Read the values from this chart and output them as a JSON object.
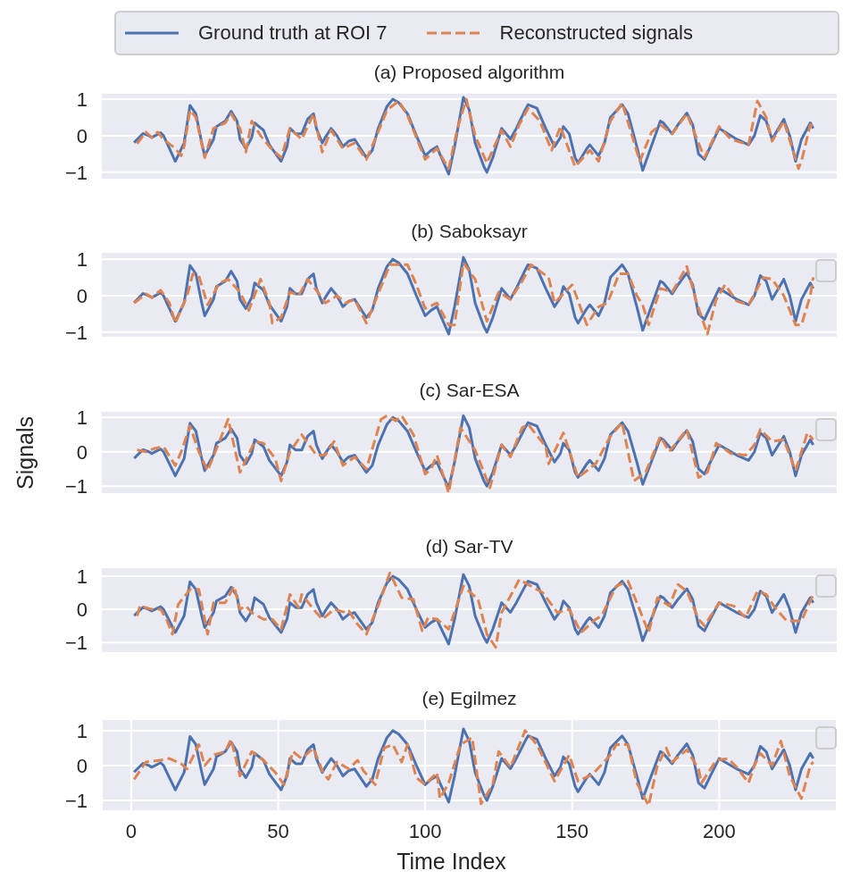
{
  "chart_data": [
    {
      "type": "line",
      "title": "(a) Proposed algorithm",
      "legend": "top",
      "grid": "y",
      "tick_labels": "y",
      "xlim": [
        -10,
        240
      ],
      "ylim": [
        -1.2,
        1.17
      ],
      "yticks": [
        -1,
        0,
        1
      ],
      "series": [
        {
          "name": "Ground truth at ROI 7",
          "color": "#4c72b0",
          "line_style": "solid",
          "x": [
            1,
            4,
            6,
            7,
            10,
            11,
            13,
            15,
            18,
            20,
            22,
            24,
            25,
            28,
            29,
            32,
            34,
            36,
            37,
            39,
            41,
            42,
            45,
            47,
            51,
            53,
            54,
            56,
            58,
            60,
            62,
            63,
            65,
            66,
            68,
            70,
            72,
            74,
            76,
            78,
            80,
            82,
            84,
            87,
            89,
            91,
            94,
            97,
            100,
            102,
            104,
            105,
            108,
            110,
            113,
            115,
            117,
            120,
            121,
            123,
            126,
            129,
            131,
            134,
            135,
            138,
            141,
            144,
            146,
            147,
            149,
            151,
            152,
            155,
            156,
            159,
            161,
            163,
            167,
            169,
            172,
            174,
            176,
            180,
            181,
            184,
            186,
            189,
            191,
            193,
            195,
            197,
            200,
            203,
            206,
            210,
            212,
            214,
            216,
            218,
            222,
            224,
            226,
            228,
            231,
            232
          ],
          "values": [
            -0.19,
            0.06,
            0.0,
            -0.05,
            0.08,
            0.0,
            -0.35,
            -0.7,
            -0.2,
            0.83,
            0.6,
            -0.2,
            -0.55,
            -0.1,
            0.25,
            0.4,
            0.67,
            0.4,
            -0.1,
            -0.35,
            -0.05,
            0.35,
            0.15,
            -0.25,
            -0.7,
            -0.3,
            0.2,
            0.05,
            0.05,
            0.45,
            0.6,
            0.2,
            -0.2,
            -0.05,
            0.2,
            0.0,
            -0.3,
            -0.15,
            -0.1,
            -0.35,
            -0.6,
            -0.4,
            0.2,
            0.8,
            1.0,
            0.9,
            0.6,
            0.0,
            -0.55,
            -0.4,
            -0.3,
            -0.5,
            -1.05,
            -0.3,
            1.05,
            0.7,
            -0.2,
            -0.85,
            -1.0,
            -0.6,
            0.2,
            -0.09,
            0.2,
            0.7,
            0.85,
            0.75,
            0.2,
            -0.3,
            -0.05,
            0.25,
            0.05,
            -0.6,
            -0.75,
            -0.35,
            -0.25,
            -0.55,
            -0.2,
            0.5,
            0.85,
            0.6,
            -0.3,
            -0.95,
            -0.5,
            0.4,
            0.35,
            0.05,
            0.3,
            0.62,
            0.3,
            -0.5,
            -0.65,
            -0.3,
            0.2,
            0.05,
            -0.1,
            -0.25,
            0.0,
            0.55,
            0.4,
            -0.1,
            0.45,
            0.0,
            -0.7,
            -0.1,
            0.35,
            0.2
          ]
        },
        {
          "name": "Reconstructed signals",
          "color": "#dd8452",
          "line_style": "dashed",
          "x": [
            2,
            5,
            7,
            9,
            11,
            15,
            17,
            18,
            20,
            22,
            25,
            28,
            32,
            34,
            37,
            39,
            41,
            44,
            47,
            51,
            54,
            58,
            62,
            65,
            68,
            72,
            76,
            80,
            84,
            87,
            91,
            94,
            97,
            100,
            104,
            108,
            111,
            114,
            117,
            121,
            126,
            129,
            132,
            135,
            139,
            143,
            146,
            151,
            156,
            159,
            163,
            167,
            173,
            177,
            180,
            184,
            189,
            192,
            195,
            200,
            204,
            210,
            213,
            216,
            218,
            222,
            227,
            228,
            231,
            232
          ],
          "values": [
            -0.22,
            0.1,
            -0.05,
            0.1,
            -0.1,
            -0.35,
            -0.55,
            -0.3,
            0.7,
            0.5,
            -0.6,
            0.2,
            0.35,
            0.6,
            0.2,
            -0.45,
            0.4,
            0.0,
            -0.3,
            -0.6,
            0.2,
            -0.1,
            0.6,
            -0.45,
            0.15,
            -0.35,
            -0.2,
            -0.65,
            0.1,
            0.7,
            0.95,
            0.55,
            -0.05,
            -0.65,
            -0.35,
            -0.9,
            0.2,
            1.0,
            0.0,
            -0.75,
            0.15,
            -0.3,
            0.3,
            0.75,
            0.4,
            -0.4,
            0.25,
            -0.85,
            -0.4,
            -0.7,
            0.4,
            0.9,
            -0.7,
            0.1,
            0.3,
            0.05,
            0.6,
            0.0,
            -0.6,
            0.25,
            -0.1,
            -0.25,
            0.95,
            0.5,
            -0.15,
            0.4,
            -0.9,
            -0.7,
            0.3,
            0.25
          ]
        }
      ]
    },
    {
      "type": "line",
      "title": "(b) Saboksayr",
      "grid": "y",
      "tick_labels": "y",
      "xlim": [
        -10,
        240
      ],
      "ylim": [
        -1.15,
        1.2
      ],
      "yticks": [
        -1,
        0,
        1
      ],
      "series": [
        {
          "color": "#4c72b0",
          "line_style": "solid",
          "x": [
            1,
            4,
            6,
            7,
            10,
            11,
            13,
            15,
            18,
            20,
            22,
            24,
            25,
            28,
            29,
            32,
            34,
            36,
            37,
            39,
            41,
            42,
            45,
            47,
            51,
            53,
            54,
            56,
            58,
            60,
            62,
            63,
            65,
            66,
            68,
            70,
            72,
            74,
            76,
            78,
            80,
            82,
            84,
            87,
            89,
            91,
            94,
            97,
            100,
            102,
            104,
            105,
            108,
            110,
            113,
            115,
            117,
            120,
            121,
            123,
            126,
            129,
            131,
            134,
            135,
            138,
            141,
            144,
            146,
            147,
            149,
            151,
            152,
            155,
            156,
            159,
            161,
            163,
            167,
            169,
            172,
            174,
            176,
            180,
            181,
            184,
            186,
            189,
            191,
            193,
            195,
            197,
            200,
            203,
            206,
            210,
            212,
            214,
            216,
            218,
            222,
            224,
            226,
            228,
            231,
            232
          ],
          "values": [
            -0.19,
            0.06,
            0.0,
            -0.05,
            0.08,
            0.0,
            -0.35,
            -0.7,
            -0.2,
            0.83,
            0.6,
            -0.2,
            -0.55,
            -0.1,
            0.25,
            0.4,
            0.67,
            0.4,
            -0.1,
            -0.35,
            -0.05,
            0.35,
            0.15,
            -0.25,
            -0.7,
            -0.3,
            0.2,
            0.05,
            0.05,
            0.45,
            0.6,
            0.2,
            -0.2,
            -0.05,
            0.2,
            0.0,
            -0.3,
            -0.15,
            -0.1,
            -0.35,
            -0.6,
            -0.4,
            0.2,
            0.8,
            1.0,
            0.9,
            0.6,
            0.0,
            -0.55,
            -0.4,
            -0.3,
            -0.5,
            -1.05,
            -0.3,
            1.05,
            0.7,
            -0.2,
            -0.85,
            -1.0,
            -0.6,
            0.2,
            -0.09,
            0.2,
            0.7,
            0.85,
            0.75,
            0.2,
            -0.3,
            -0.05,
            0.25,
            0.05,
            -0.6,
            -0.75,
            -0.35,
            -0.25,
            -0.55,
            -0.2,
            0.5,
            0.85,
            0.6,
            -0.3,
            -0.95,
            -0.5,
            0.4,
            0.35,
            0.05,
            0.3,
            0.62,
            0.3,
            -0.5,
            -0.65,
            -0.3,
            0.2,
            0.05,
            -0.1,
            -0.25,
            0.0,
            0.55,
            0.4,
            -0.1,
            0.45,
            0.0,
            -0.7,
            -0.1,
            0.35,
            0.2
          ]
        },
        {
          "color": "#dd8452",
          "line_style": "dashed",
          "x": [
            1,
            5,
            7,
            10,
            13,
            15,
            19,
            21,
            23,
            26,
            30,
            33,
            37,
            40,
            44,
            47,
            48,
            51,
            54,
            57,
            60,
            63,
            66,
            70,
            73,
            76,
            80,
            84,
            88,
            94,
            97,
            100,
            104,
            108,
            110,
            113,
            117,
            121,
            125,
            129,
            133,
            136,
            142,
            144,
            150,
            155,
            159,
            162,
            166,
            169,
            172,
            174,
            176,
            180,
            184,
            189,
            192,
            196,
            199,
            202,
            206,
            210,
            215,
            218,
            222,
            226,
            228,
            231,
            232
          ],
          "values": [
            -0.2,
            0.05,
            -0.05,
            0.15,
            -0.2,
            -0.75,
            0.0,
            0.6,
            0.55,
            -0.25,
            0.35,
            0.45,
            0.1,
            -0.4,
            0.45,
            -0.2,
            -0.75,
            -0.6,
            0.1,
            0.0,
            0.45,
            0.15,
            -0.2,
            0.0,
            -0.2,
            -0.1,
            -0.75,
            0.05,
            0.85,
            0.85,
            0.3,
            -0.35,
            -0.2,
            -0.8,
            -0.8,
            0.9,
            0.45,
            -0.7,
            0.1,
            -0.1,
            0.4,
            0.85,
            0.5,
            -0.2,
            0.3,
            -0.8,
            -0.3,
            -0.2,
            0.6,
            0.6,
            0.0,
            -0.25,
            -0.8,
            0.2,
            0.1,
            0.8,
            -0.1,
            -1.05,
            -0.1,
            0.3,
            -0.15,
            -0.25,
            0.5,
            0.45,
            0.0,
            -0.8,
            -0.8,
            0.0,
            0.5
          ]
        }
      ]
    },
    {
      "type": "line",
      "title": "(c) Sar-ESA",
      "ylabel": "Signals",
      "grid": "y",
      "tick_labels": "y",
      "xlim": [
        -10,
        240
      ],
      "ylim": [
        -1.23,
        1.19
      ],
      "yticks": [
        -1,
        0,
        1
      ],
      "series": [
        {
          "color": "#4c72b0",
          "line_style": "solid",
          "x": [
            1,
            4,
            6,
            7,
            10,
            11,
            13,
            15,
            18,
            20,
            22,
            24,
            25,
            28,
            29,
            32,
            34,
            36,
            37,
            39,
            41,
            42,
            45,
            47,
            51,
            53,
            54,
            56,
            58,
            60,
            62,
            63,
            65,
            66,
            68,
            70,
            72,
            74,
            76,
            78,
            80,
            82,
            84,
            87,
            89,
            91,
            94,
            97,
            100,
            102,
            104,
            105,
            108,
            110,
            113,
            115,
            117,
            120,
            121,
            123,
            126,
            129,
            131,
            134,
            135,
            138,
            141,
            144,
            146,
            147,
            149,
            151,
            152,
            155,
            156,
            159,
            161,
            163,
            167,
            169,
            172,
            174,
            176,
            180,
            181,
            184,
            186,
            189,
            191,
            193,
            195,
            197,
            200,
            203,
            206,
            210,
            212,
            214,
            216,
            218,
            222,
            224,
            226,
            228,
            231,
            232
          ],
          "values": [
            -0.19,
            0.06,
            0.0,
            -0.05,
            0.08,
            0.0,
            -0.35,
            -0.7,
            -0.2,
            0.83,
            0.6,
            -0.2,
            -0.55,
            -0.1,
            0.25,
            0.4,
            0.67,
            0.4,
            -0.1,
            -0.35,
            -0.05,
            0.35,
            0.15,
            -0.25,
            -0.7,
            -0.3,
            0.2,
            0.05,
            0.05,
            0.45,
            0.6,
            0.2,
            -0.2,
            -0.05,
            0.2,
            0.0,
            -0.3,
            -0.15,
            -0.1,
            -0.35,
            -0.6,
            -0.4,
            0.2,
            0.8,
            1.0,
            0.9,
            0.6,
            0.0,
            -0.55,
            -0.4,
            -0.3,
            -0.5,
            -1.05,
            -0.3,
            1.05,
            0.7,
            -0.2,
            -0.85,
            -1.0,
            -0.6,
            0.2,
            -0.09,
            0.2,
            0.7,
            0.85,
            0.75,
            0.2,
            -0.3,
            -0.05,
            0.25,
            0.05,
            -0.6,
            -0.75,
            -0.35,
            -0.25,
            -0.55,
            -0.2,
            0.5,
            0.85,
            0.6,
            -0.3,
            -0.95,
            -0.5,
            0.4,
            0.35,
            0.05,
            0.3,
            0.62,
            0.3,
            -0.5,
            -0.65,
            -0.3,
            0.2,
            0.05,
            -0.1,
            -0.25,
            0.0,
            0.55,
            0.4,
            -0.1,
            0.45,
            0.0,
            -0.7,
            -0.1,
            0.35,
            0.2
          ]
        },
        {
          "color": "#dd8452",
          "line_style": "dashed",
          "x": [
            2,
            5,
            8,
            11,
            15,
            17,
            20,
            23,
            26,
            30,
            33,
            37,
            42,
            45,
            49,
            51,
            54,
            58,
            63,
            66,
            69,
            72,
            76,
            80,
            85,
            87,
            90,
            92,
            96,
            100,
            102,
            104,
            108,
            112,
            117,
            120,
            122,
            126,
            129,
            133,
            135,
            141,
            142,
            147,
            152,
            158,
            163,
            167,
            171,
            175,
            180,
            183,
            189,
            193,
            196,
            199,
            204,
            209,
            212,
            214,
            218,
            222,
            226,
            230,
            232
          ],
          "values": [
            0.05,
            0.0,
            0.1,
            0.15,
            -0.4,
            0.0,
            0.75,
            0.0,
            -0.55,
            0.3,
            0.95,
            -0.6,
            0.3,
            0.25,
            -0.2,
            -0.85,
            0.0,
            0.5,
            -0.1,
            -0.1,
            0.3,
            -0.4,
            -0.15,
            -0.5,
            0.95,
            1.05,
            0.9,
            1.05,
            0.5,
            -0.65,
            -0.5,
            -0.1,
            -1.2,
            0.7,
            0.05,
            -0.6,
            -1.05,
            0.2,
            -0.15,
            0.7,
            0.8,
            0.15,
            -0.35,
            0.55,
            -0.75,
            -0.35,
            0.45,
            0.85,
            -0.85,
            -0.6,
            0.45,
            0.0,
            0.65,
            -0.75,
            -0.6,
            0.25,
            -0.05,
            -0.1,
            0.2,
            0.65,
            0.3,
            0.35,
            -0.55,
            0.55,
            0.35
          ]
        }
      ]
    },
    {
      "type": "line",
      "title": "(d) Sar-TV",
      "grid": "y",
      "tick_labels": "y",
      "xlim": [
        -10,
        240
      ],
      "ylim": [
        -1.32,
        1.27
      ],
      "yticks": [
        -1,
        0,
        1
      ],
      "series": [
        {
          "color": "#4c72b0",
          "line_style": "solid",
          "x": [
            1,
            4,
            6,
            7,
            10,
            11,
            13,
            15,
            18,
            20,
            22,
            24,
            25,
            28,
            29,
            32,
            34,
            36,
            37,
            39,
            41,
            42,
            45,
            47,
            51,
            53,
            54,
            56,
            58,
            60,
            62,
            63,
            65,
            66,
            68,
            70,
            72,
            74,
            76,
            78,
            80,
            82,
            84,
            87,
            89,
            91,
            94,
            97,
            100,
            102,
            104,
            105,
            108,
            110,
            113,
            115,
            117,
            120,
            121,
            123,
            126,
            129,
            131,
            134,
            135,
            138,
            141,
            144,
            146,
            147,
            149,
            151,
            152,
            155,
            156,
            159,
            161,
            163,
            167,
            169,
            172,
            174,
            176,
            180,
            181,
            184,
            186,
            189,
            191,
            193,
            195,
            197,
            200,
            203,
            206,
            210,
            212,
            214,
            216,
            218,
            222,
            224,
            226,
            228,
            231,
            232
          ],
          "values": [
            -0.19,
            0.06,
            0.0,
            -0.05,
            0.08,
            0.0,
            -0.35,
            -0.7,
            -0.2,
            0.83,
            0.6,
            -0.2,
            -0.55,
            -0.1,
            0.25,
            0.4,
            0.67,
            0.4,
            -0.1,
            -0.35,
            -0.05,
            0.35,
            0.15,
            -0.25,
            -0.7,
            -0.3,
            0.2,
            0.05,
            0.05,
            0.45,
            0.6,
            0.2,
            -0.2,
            -0.05,
            0.2,
            0.0,
            -0.3,
            -0.15,
            -0.1,
            -0.35,
            -0.6,
            -0.4,
            0.2,
            0.8,
            1.0,
            0.9,
            0.6,
            0.0,
            -0.55,
            -0.4,
            -0.3,
            -0.5,
            -1.05,
            -0.3,
            1.05,
            0.7,
            -0.2,
            -0.85,
            -1.0,
            -0.6,
            0.2,
            -0.09,
            0.2,
            0.7,
            0.85,
            0.75,
            0.2,
            -0.3,
            -0.05,
            0.25,
            0.05,
            -0.6,
            -0.75,
            -0.35,
            -0.25,
            -0.55,
            -0.2,
            0.5,
            0.85,
            0.6,
            -0.3,
            -0.95,
            -0.5,
            0.4,
            0.35,
            0.05,
            0.3,
            0.62,
            0.3,
            -0.5,
            -0.65,
            -0.3,
            0.2,
            0.05,
            -0.1,
            -0.25,
            0.0,
            0.55,
            0.4,
            -0.1,
            0.45,
            0.0,
            -0.7,
            -0.1,
            0.35,
            0.2
          ]
        },
        {
          "color": "#dd8452",
          "line_style": "dashed",
          "x": [
            2,
            3,
            7,
            10,
            12,
            14,
            16,
            20,
            23,
            26,
            28,
            32,
            35,
            37,
            39,
            41,
            45,
            48,
            51,
            54,
            57,
            58,
            63,
            65,
            69,
            73,
            74,
            77,
            80,
            84,
            88,
            92,
            96,
            99,
            101,
            104,
            108,
            113,
            118,
            121,
            124,
            126,
            132,
            134,
            140,
            145,
            149,
            153,
            158,
            160,
            165,
            169,
            172,
            176,
            179,
            183,
            186,
            189,
            193,
            195,
            200,
            205,
            209,
            213,
            216,
            219,
            223,
            228,
            232
          ],
          "values": [
            -0.2,
            0.1,
            0.0,
            0.0,
            -0.3,
            -0.75,
            0.15,
            0.6,
            0.6,
            -0.75,
            0.2,
            0.2,
            0.7,
            0.0,
            0.1,
            -0.1,
            -0.3,
            -0.3,
            -0.6,
            0.45,
            0.05,
            0.45,
            -0.1,
            -0.3,
            0.0,
            -0.1,
            -0.05,
            -0.45,
            -0.75,
            0.1,
            1.1,
            0.35,
            0.3,
            -0.65,
            -0.25,
            -0.3,
            -0.6,
            0.7,
            0.3,
            -0.75,
            -1.15,
            -0.1,
            0.9,
            0.8,
            0.5,
            -0.1,
            0.0,
            -0.7,
            -0.3,
            -0.2,
            0.7,
            0.85,
            0.2,
            -0.7,
            0.35,
            0.1,
            0.75,
            0.55,
            -0.3,
            -0.5,
            0.2,
            0.1,
            -0.25,
            0.55,
            0.45,
            0.05,
            -0.35,
            -0.35,
            0.45
          ]
        }
      ]
    },
    {
      "type": "line",
      "title": "(e) Egilmez",
      "xlabel": "Time Index",
      "grid": true,
      "xlim": [
        -10,
        240
      ],
      "xticks": [
        0,
        50,
        100,
        150,
        200
      ],
      "ylim": [
        -1.31,
        1.33
      ],
      "yticks": [
        -1,
        0,
        1
      ],
      "series": [
        {
          "color": "#4c72b0",
          "line_style": "solid",
          "x": [
            1,
            4,
            6,
            7,
            10,
            11,
            13,
            15,
            18,
            20,
            22,
            24,
            25,
            28,
            29,
            32,
            34,
            36,
            37,
            39,
            41,
            42,
            45,
            47,
            51,
            53,
            54,
            56,
            58,
            60,
            62,
            63,
            65,
            66,
            68,
            70,
            72,
            74,
            76,
            78,
            80,
            82,
            84,
            87,
            89,
            91,
            94,
            97,
            100,
            102,
            104,
            105,
            108,
            110,
            113,
            115,
            117,
            120,
            121,
            123,
            126,
            129,
            131,
            134,
            135,
            138,
            141,
            144,
            146,
            147,
            149,
            151,
            152,
            155,
            156,
            159,
            161,
            163,
            167,
            169,
            172,
            174,
            176,
            180,
            181,
            184,
            186,
            189,
            191,
            193,
            195,
            197,
            200,
            203,
            206,
            210,
            212,
            214,
            216,
            218,
            222,
            224,
            226,
            228,
            231,
            232
          ],
          "values": [
            -0.19,
            0.06,
            0.0,
            -0.05,
            0.08,
            0.0,
            -0.35,
            -0.7,
            -0.2,
            0.83,
            0.6,
            -0.2,
            -0.55,
            -0.1,
            0.25,
            0.4,
            0.67,
            0.4,
            -0.1,
            -0.35,
            -0.05,
            0.35,
            0.15,
            -0.25,
            -0.7,
            -0.3,
            0.2,
            0.05,
            0.05,
            0.45,
            0.6,
            0.2,
            -0.2,
            -0.05,
            0.2,
            0.0,
            -0.3,
            -0.15,
            -0.1,
            -0.35,
            -0.6,
            -0.4,
            0.2,
            0.8,
            1.0,
            0.9,
            0.6,
            0.0,
            -0.55,
            -0.4,
            -0.3,
            -0.5,
            -1.05,
            -0.3,
            1.05,
            0.7,
            -0.2,
            -0.85,
            -1.0,
            -0.6,
            0.2,
            -0.09,
            0.2,
            0.7,
            0.85,
            0.75,
            0.2,
            -0.3,
            -0.05,
            0.25,
            0.05,
            -0.6,
            -0.75,
            -0.35,
            -0.25,
            -0.55,
            -0.2,
            0.5,
            0.85,
            0.6,
            -0.3,
            -0.95,
            -0.5,
            0.4,
            0.35,
            0.05,
            0.3,
            0.62,
            0.3,
            -0.5,
            -0.65,
            -0.3,
            0.2,
            0.05,
            -0.1,
            -0.25,
            0.0,
            0.55,
            0.4,
            -0.1,
            0.45,
            0.0,
            -0.7,
            -0.1,
            0.35,
            0.2
          ]
        },
        {
          "color": "#dd8452",
          "line_style": "dashed",
          "x": [
            1,
            5,
            10,
            13,
            17,
            19,
            23,
            25,
            28,
            32,
            34,
            37,
            41,
            45,
            49,
            52,
            55,
            58,
            62,
            65,
            67,
            70,
            74,
            77,
            79,
            83,
            86,
            89,
            92,
            94,
            97,
            100,
            104,
            105,
            108,
            112,
            116,
            119,
            123,
            125,
            129,
            134,
            138,
            144,
            149,
            152,
            157,
            163,
            165,
            169,
            172,
            176,
            179,
            182,
            184,
            189,
            193,
            194,
            199,
            203,
            206,
            210,
            212,
            214,
            218,
            221,
            224,
            228,
            231,
            232
          ],
          "values": [
            -0.4,
            0.1,
            0.15,
            0.2,
            0.05,
            -0.1,
            0.6,
            0.0,
            0.3,
            0.4,
            0.75,
            -0.3,
            0.4,
            0.15,
            -0.2,
            -0.55,
            0.4,
            0.2,
            0.5,
            -0.15,
            -0.4,
            0.1,
            -0.1,
            0.15,
            -0.15,
            -0.55,
            0.5,
            0.6,
            0.1,
            0.6,
            -0.35,
            -0.55,
            -0.2,
            -0.95,
            -0.5,
            0.6,
            0.8,
            -1.1,
            -0.55,
            0.4,
            -0.05,
            1.0,
            0.6,
            -0.45,
            0.3,
            -0.45,
            -0.25,
            0.3,
            0.6,
            0.6,
            -0.5,
            -1.15,
            0.0,
            0.5,
            0.1,
            0.45,
            -0.1,
            -0.5,
            0.15,
            0.2,
            -0.05,
            -0.5,
            0.0,
            0.35,
            0.0,
            0.7,
            -0.3,
            -0.95,
            0.0,
            0.1
          ]
        }
      ]
    }
  ]
}
